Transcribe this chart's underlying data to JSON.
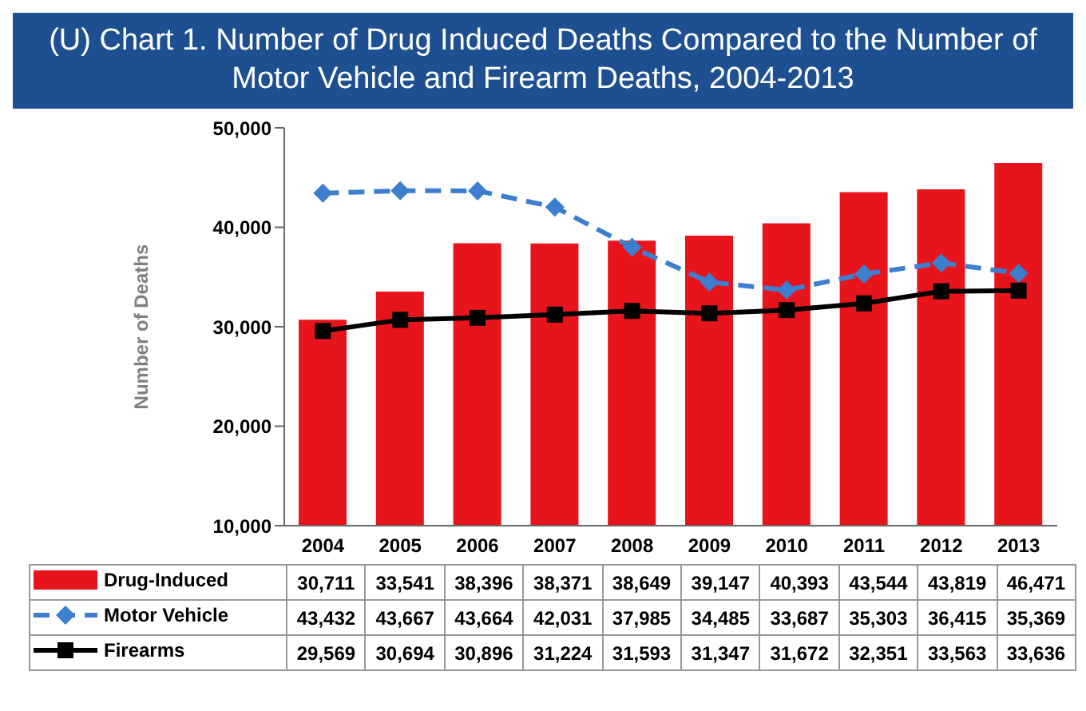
{
  "chart_data": {
    "type": "bar",
    "title": "(U) Chart 1. Number of Drug Induced Deaths Compared to the Number of Motor Vehicle and Firearm Deaths, 2004-2013",
    "ylabel": "Number of Deaths",
    "categories": [
      "2004",
      "2005",
      "2006",
      "2007",
      "2008",
      "2009",
      "2010",
      "2011",
      "2012",
      "2013"
    ],
    "series": [
      {
        "name": "Drug-Induced",
        "color": "#e8141b",
        "values": [
          30711,
          33541,
          38396,
          38371,
          38649,
          39147,
          40393,
          43544,
          43819,
          46471
        ],
        "value_labels": [
          "30,711",
          "33,541",
          "38,396",
          "38,371",
          "38,649",
          "39,147",
          "40,393",
          "43,544",
          "43,819",
          "46,471"
        ]
      },
      {
        "name": "Motor Vehicle",
        "type": "line",
        "color": "#3d7fce",
        "marker": "diamond",
        "line_style": "dashed",
        "values": [
          43432,
          43667,
          43664,
          42031,
          37985,
          34485,
          33687,
          35303,
          36415,
          35369
        ],
        "value_labels": [
          "43,432",
          "43,667",
          "43,664",
          "42,031",
          "37,985",
          "34,485",
          "33,687",
          "35,303",
          "36,415",
          "35,369"
        ]
      },
      {
        "name": "Firearms",
        "type": "line",
        "color": "#000000",
        "marker": "square",
        "line_style": "solid",
        "values": [
          29569,
          30694,
          30896,
          31224,
          31593,
          31347,
          31672,
          32351,
          33563,
          33636
        ],
        "value_labels": [
          "29,569",
          "30,694",
          "30,896",
          "31,224",
          "31,593",
          "31,347",
          "31,672",
          "32,351",
          "33,563",
          "33,636"
        ]
      }
    ],
    "ylim": [
      10000,
      50000
    ],
    "yticks": [
      {
        "value": 10000,
        "label": "10,000"
      },
      {
        "value": 20000,
        "label": "20,000"
      },
      {
        "value": 30000,
        "label": "30,000"
      },
      {
        "value": 40000,
        "label": "40,000"
      },
      {
        "value": 50000,
        "label": "50,000"
      }
    ],
    "legend": "bottom"
  }
}
